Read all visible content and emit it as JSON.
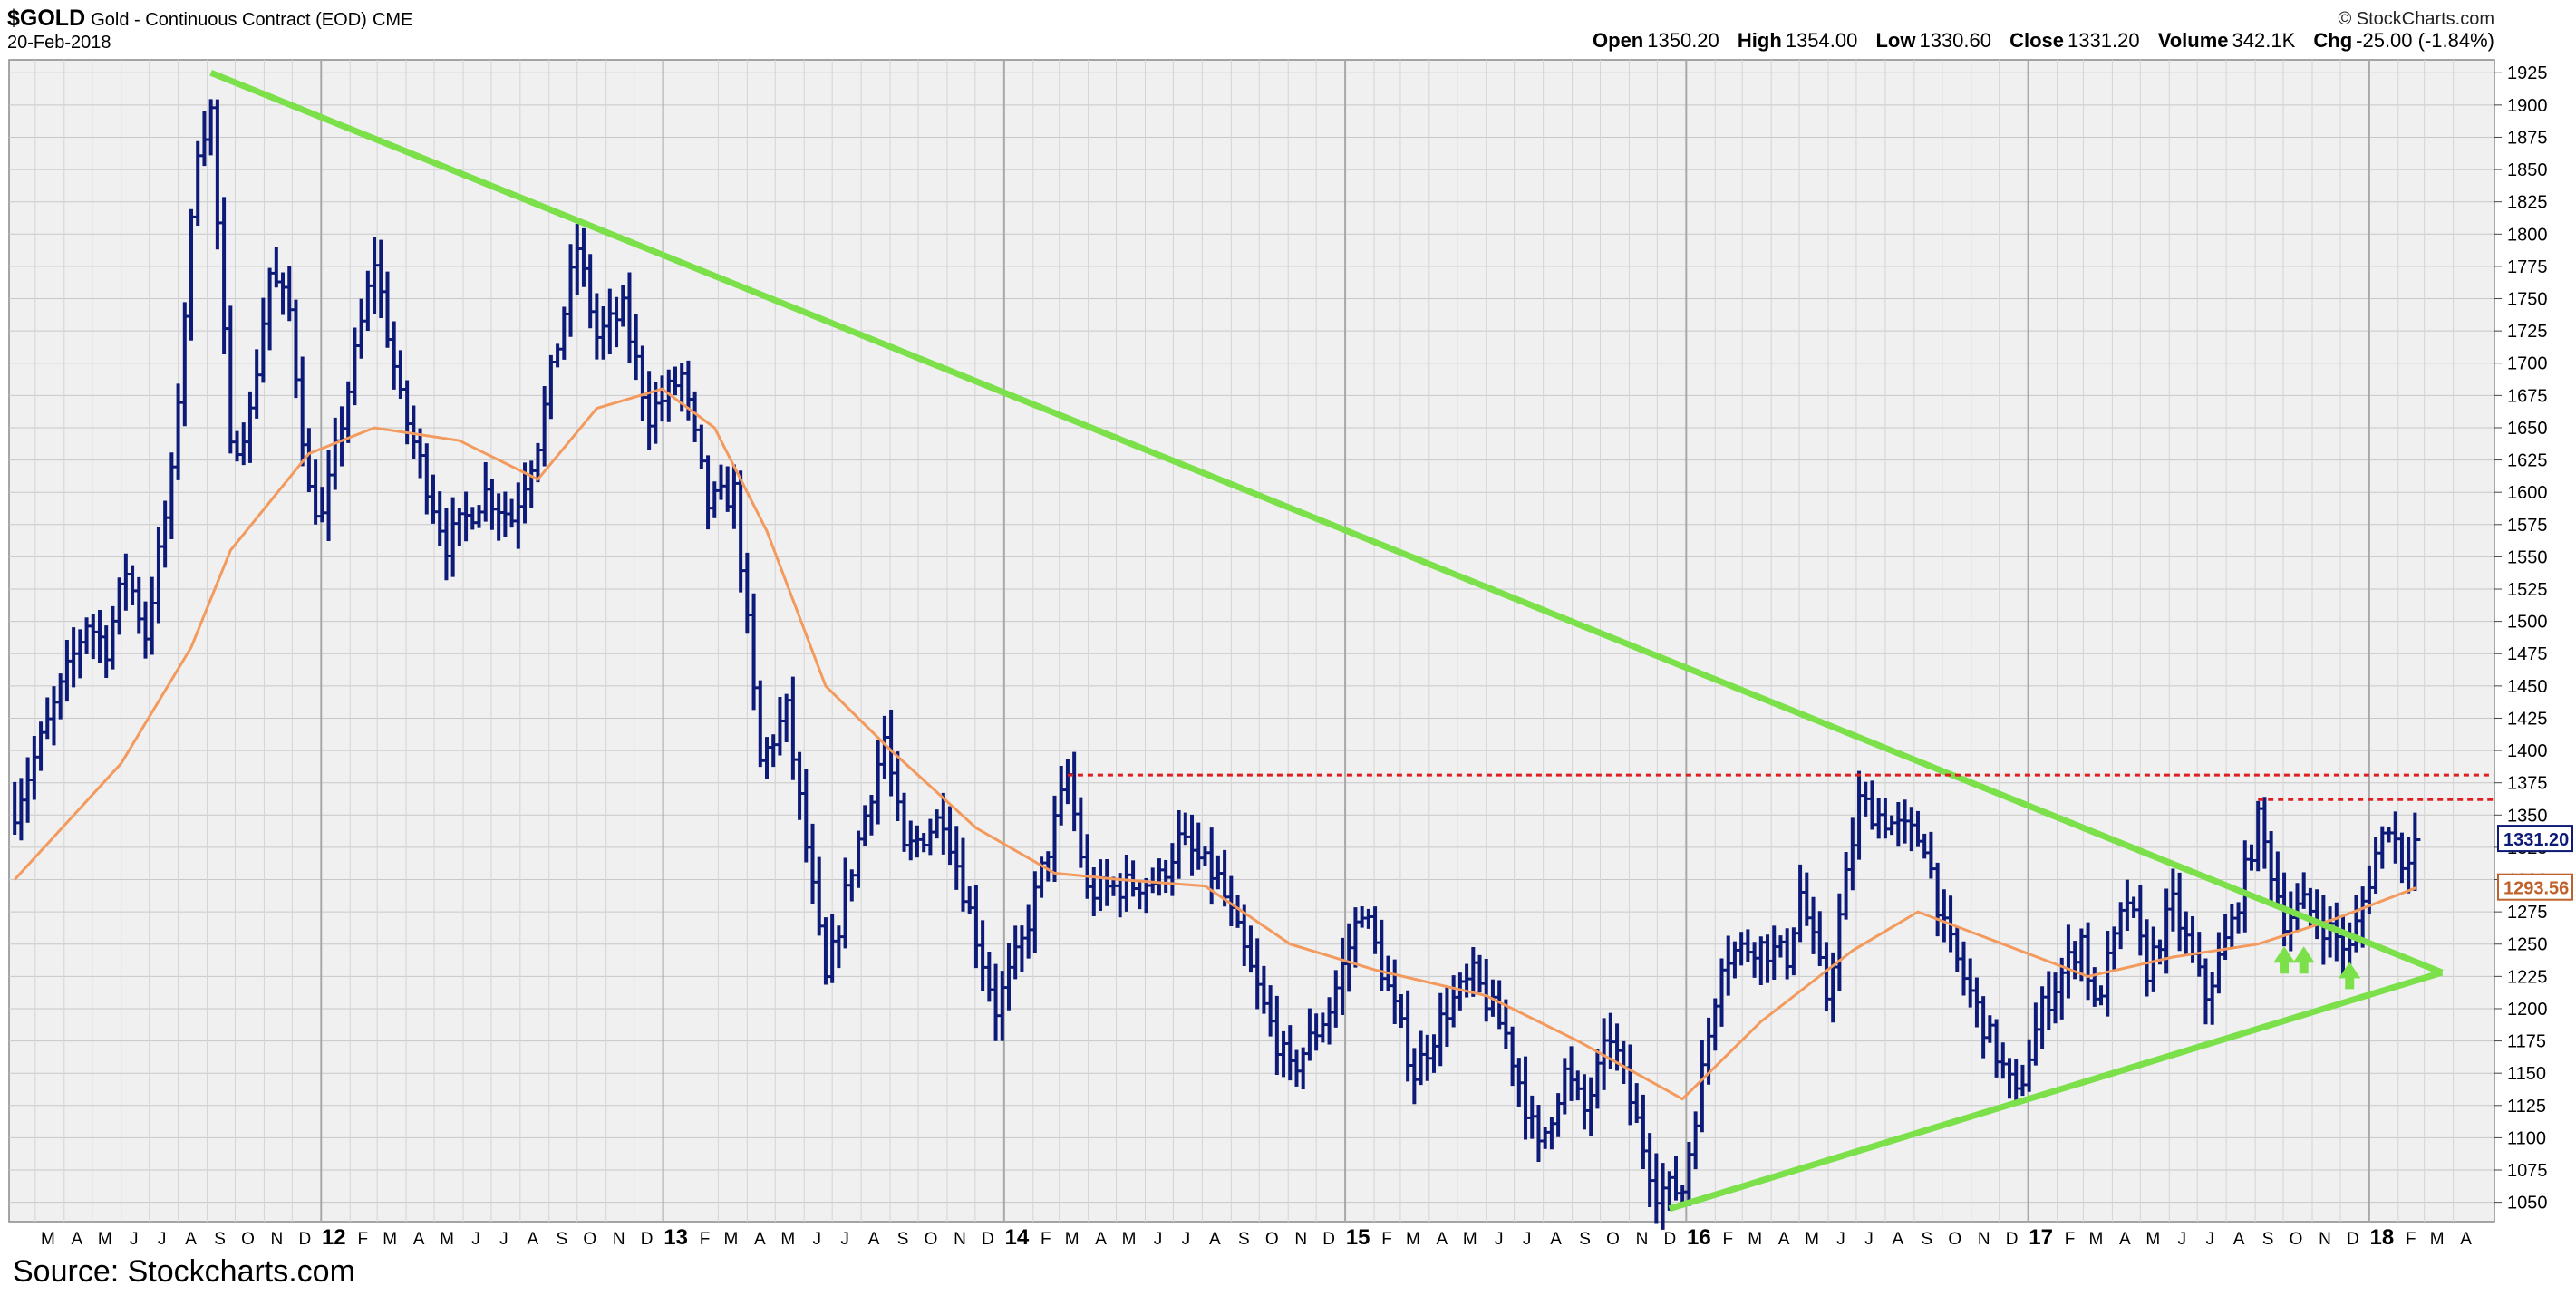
{
  "header": {
    "symbol": "$GOLD",
    "subtitle": "Gold - Continuous Contract (EOD)",
    "exchange": "CME",
    "date": "20-Feb-2018",
    "credit": "© StockCharts.com",
    "open_label": "Open",
    "open": "1350.20",
    "high_label": "High",
    "high": "1354.00",
    "low_label": "Low",
    "low": "1330.60",
    "close_label": "Close",
    "close": "1331.20",
    "volume_label": "Volume",
    "volume": "342.1K",
    "chg_label": "Chg",
    "chg": "-25.00 (-1.84%)"
  },
  "footer": {
    "source": "Source: Stockcharts.com"
  },
  "chart_data": {
    "type": "line",
    "style": "weekly price bars (high-low-close) with moving average",
    "title": "",
    "xlabel": "",
    "ylabel": "",
    "ylim": [
      1035,
      1935
    ],
    "xlim": [
      "2011-02-01",
      "2018-05-15"
    ],
    "y_axis_position": "right",
    "grid": true,
    "yticks": [
      1050,
      1075,
      1100,
      1125,
      1150,
      1175,
      1200,
      1225,
      1250,
      1275,
      1300,
      1325,
      1350,
      1375,
      1400,
      1425,
      1450,
      1475,
      1500,
      1525,
      1550,
      1575,
      1600,
      1625,
      1650,
      1675,
      1700,
      1725,
      1750,
      1775,
      1800,
      1825,
      1850,
      1875,
      1900,
      1925
    ],
    "xticks": [
      {
        "date": "2011-03-01",
        "label": "M"
      },
      {
        "date": "2011-04-01",
        "label": "A"
      },
      {
        "date": "2011-05-01",
        "label": "M"
      },
      {
        "date": "2011-06-01",
        "label": "J"
      },
      {
        "date": "2011-07-01",
        "label": "J"
      },
      {
        "date": "2011-08-01",
        "label": "A"
      },
      {
        "date": "2011-09-01",
        "label": "S"
      },
      {
        "date": "2011-10-01",
        "label": "O"
      },
      {
        "date": "2011-11-01",
        "label": "N"
      },
      {
        "date": "2011-12-01",
        "label": "D"
      },
      {
        "date": "2012-01-01",
        "label": "12"
      },
      {
        "date": "2012-02-01",
        "label": "F"
      },
      {
        "date": "2012-03-01",
        "label": "M"
      },
      {
        "date": "2012-04-01",
        "label": "A"
      },
      {
        "date": "2012-05-01",
        "label": "M"
      },
      {
        "date": "2012-06-01",
        "label": "J"
      },
      {
        "date": "2012-07-01",
        "label": "J"
      },
      {
        "date": "2012-08-01",
        "label": "A"
      },
      {
        "date": "2012-09-01",
        "label": "S"
      },
      {
        "date": "2012-10-01",
        "label": "O"
      },
      {
        "date": "2012-11-01",
        "label": "N"
      },
      {
        "date": "2012-12-01",
        "label": "D"
      },
      {
        "date": "2013-01-01",
        "label": "13"
      },
      {
        "date": "2013-02-01",
        "label": "F"
      },
      {
        "date": "2013-03-01",
        "label": "M"
      },
      {
        "date": "2013-04-01",
        "label": "A"
      },
      {
        "date": "2013-05-01",
        "label": "M"
      },
      {
        "date": "2013-06-01",
        "label": "J"
      },
      {
        "date": "2013-07-01",
        "label": "J"
      },
      {
        "date": "2013-08-01",
        "label": "A"
      },
      {
        "date": "2013-09-01",
        "label": "S"
      },
      {
        "date": "2013-10-01",
        "label": "O"
      },
      {
        "date": "2013-11-01",
        "label": "N"
      },
      {
        "date": "2013-12-01",
        "label": "D"
      },
      {
        "date": "2014-01-01",
        "label": "14"
      },
      {
        "date": "2014-02-01",
        "label": "F"
      },
      {
        "date": "2014-03-01",
        "label": "M"
      },
      {
        "date": "2014-04-01",
        "label": "A"
      },
      {
        "date": "2014-05-01",
        "label": "M"
      },
      {
        "date": "2014-06-01",
        "label": "J"
      },
      {
        "date": "2014-07-01",
        "label": "J"
      },
      {
        "date": "2014-08-01",
        "label": "A"
      },
      {
        "date": "2014-09-01",
        "label": "S"
      },
      {
        "date": "2014-10-01",
        "label": "O"
      },
      {
        "date": "2014-11-01",
        "label": "N"
      },
      {
        "date": "2014-12-01",
        "label": "D"
      },
      {
        "date": "2015-01-01",
        "label": "15"
      },
      {
        "date": "2015-02-01",
        "label": "F"
      },
      {
        "date": "2015-03-01",
        "label": "M"
      },
      {
        "date": "2015-04-01",
        "label": "A"
      },
      {
        "date": "2015-05-01",
        "label": "M"
      },
      {
        "date": "2015-06-01",
        "label": "J"
      },
      {
        "date": "2015-07-01",
        "label": "J"
      },
      {
        "date": "2015-08-01",
        "label": "A"
      },
      {
        "date": "2015-09-01",
        "label": "S"
      },
      {
        "date": "2015-10-01",
        "label": "O"
      },
      {
        "date": "2015-11-01",
        "label": "N"
      },
      {
        "date": "2015-12-01",
        "label": "D"
      },
      {
        "date": "2016-01-01",
        "label": "16"
      },
      {
        "date": "2016-02-01",
        "label": "F"
      },
      {
        "date": "2016-03-01",
        "label": "M"
      },
      {
        "date": "2016-04-01",
        "label": "A"
      },
      {
        "date": "2016-05-01",
        "label": "M"
      },
      {
        "date": "2016-06-01",
        "label": "J"
      },
      {
        "date": "2016-07-01",
        "label": "J"
      },
      {
        "date": "2016-08-01",
        "label": "A"
      },
      {
        "date": "2016-09-01",
        "label": "S"
      },
      {
        "date": "2016-10-01",
        "label": "O"
      },
      {
        "date": "2016-11-01",
        "label": "N"
      },
      {
        "date": "2016-12-01",
        "label": "D"
      },
      {
        "date": "2017-01-01",
        "label": "17"
      },
      {
        "date": "2017-02-01",
        "label": "F"
      },
      {
        "date": "2017-03-01",
        "label": "M"
      },
      {
        "date": "2017-04-01",
        "label": "A"
      },
      {
        "date": "2017-05-01",
        "label": "M"
      },
      {
        "date": "2017-06-01",
        "label": "J"
      },
      {
        "date": "2017-07-01",
        "label": "J"
      },
      {
        "date": "2017-08-01",
        "label": "A"
      },
      {
        "date": "2017-09-01",
        "label": "S"
      },
      {
        "date": "2017-10-01",
        "label": "O"
      },
      {
        "date": "2017-11-01",
        "label": "N"
      },
      {
        "date": "2017-12-01",
        "label": "D"
      },
      {
        "date": "2018-01-01",
        "label": "18"
      },
      {
        "date": "2018-02-01",
        "label": "F"
      },
      {
        "date": "2018-03-01",
        "label": "M"
      },
      {
        "date": "2018-04-01",
        "label": "A"
      }
    ],
    "price_anchors": [
      [
        "2011-02-07",
        1355
      ],
      [
        "2011-03-14",
        1420
      ],
      [
        "2011-04-25",
        1500
      ],
      [
        "2011-05-16",
        1480
      ],
      [
        "2011-06-06",
        1540
      ],
      [
        "2011-06-27",
        1490
      ],
      [
        "2011-07-25",
        1610
      ],
      [
        "2011-08-22",
        1870
      ],
      [
        "2011-09-05",
        1895
      ],
      [
        "2011-09-26",
        1630
      ],
      [
        "2011-10-17",
        1660
      ],
      [
        "2011-11-07",
        1770
      ],
      [
        "2011-11-28",
        1740
      ],
      [
        "2011-12-19",
        1600
      ],
      [
        "2012-01-02",
        1580
      ],
      [
        "2012-02-27",
        1780
      ],
      [
        "2012-03-26",
        1670
      ],
      [
        "2012-05-14",
        1560
      ],
      [
        "2012-06-25",
        1600
      ],
      [
        "2012-07-23",
        1580
      ],
      [
        "2012-08-20",
        1640
      ],
      [
        "2012-10-01",
        1790
      ],
      [
        "2012-10-22",
        1720
      ],
      [
        "2012-11-19",
        1740
      ],
      [
        "2012-12-17",
        1660
      ],
      [
        "2013-01-21",
        1690
      ],
      [
        "2013-02-18",
        1590
      ],
      [
        "2013-03-18",
        1600
      ],
      [
        "2013-04-15",
        1390
      ],
      [
        "2013-05-13",
        1430
      ],
      [
        "2013-06-24",
        1220
      ],
      [
        "2013-07-22",
        1310
      ],
      [
        "2013-08-26",
        1410
      ],
      [
        "2013-09-16",
        1320
      ],
      [
        "2013-10-28",
        1350
      ],
      [
        "2013-12-23",
        1200
      ],
      [
        "2014-01-20",
        1250
      ],
      [
        "2014-03-10",
        1380
      ],
      [
        "2014-03-31",
        1290
      ],
      [
        "2014-06-16",
        1300
      ],
      [
        "2014-07-07",
        1330
      ],
      [
        "2014-08-18",
        1300
      ],
      [
        "2014-10-06",
        1200
      ],
      [
        "2014-11-03",
        1150
      ],
      [
        "2014-12-15",
        1200
      ],
      [
        "2015-01-19",
        1280
      ],
      [
        "2015-03-16",
        1150
      ],
      [
        "2015-04-20",
        1200
      ],
      [
        "2015-05-18",
        1225
      ],
      [
        "2015-06-22",
        1180
      ],
      [
        "2015-07-27",
        1090
      ],
      [
        "2015-08-24",
        1150
      ],
      [
        "2015-09-14",
        1120
      ],
      [
        "2015-10-12",
        1180
      ],
      [
        "2015-11-30",
        1060
      ],
      [
        "2015-12-28",
        1060
      ],
      [
        "2016-02-08",
        1240
      ],
      [
        "2016-03-14",
        1250
      ],
      [
        "2016-04-18",
        1240
      ],
      [
        "2016-05-02",
        1290
      ],
      [
        "2016-05-30",
        1210
      ],
      [
        "2016-07-04",
        1360
      ],
      [
        "2016-08-15",
        1340
      ],
      [
        "2016-09-12",
        1330
      ],
      [
        "2016-10-03",
        1260
      ],
      [
        "2016-11-07",
        1200
      ],
      [
        "2016-12-19",
        1130
      ],
      [
        "2017-01-16",
        1200
      ],
      [
        "2017-02-27",
        1255
      ],
      [
        "2017-03-13",
        1200
      ],
      [
        "2017-04-17",
        1285
      ],
      [
        "2017-05-08",
        1230
      ],
      [
        "2017-06-05",
        1280
      ],
      [
        "2017-07-10",
        1210
      ],
      [
        "2017-08-07",
        1265
      ],
      [
        "2017-09-04",
        1345
      ],
      [
        "2017-10-02",
        1270
      ],
      [
        "2017-10-23",
        1280
      ],
      [
        "2017-12-11",
        1245
      ],
      [
        "2018-01-08",
        1320
      ],
      [
        "2018-01-22",
        1345
      ],
      [
        "2018-02-05",
        1315
      ],
      [
        "2018-02-20",
        1331
      ]
    ],
    "moving_average": [
      [
        "2011-02-07",
        1300
      ],
      [
        "2011-06-01",
        1390
      ],
      [
        "2011-08-15",
        1480
      ],
      [
        "2011-09-26",
        1555
      ],
      [
        "2011-12-19",
        1630
      ],
      [
        "2012-02-27",
        1650
      ],
      [
        "2012-05-28",
        1640
      ],
      [
        "2012-08-20",
        1610
      ],
      [
        "2012-10-22",
        1665
      ],
      [
        "2012-12-31",
        1680
      ],
      [
        "2013-02-25",
        1650
      ],
      [
        "2013-04-22",
        1570
      ],
      [
        "2013-06-24",
        1450
      ],
      [
        "2013-09-02",
        1400
      ],
      [
        "2013-12-02",
        1340
      ],
      [
        "2014-02-24",
        1305
      ],
      [
        "2014-05-05",
        1300
      ],
      [
        "2014-08-04",
        1295
      ],
      [
        "2014-11-03",
        1250
      ],
      [
        "2015-02-02",
        1230
      ],
      [
        "2015-06-01",
        1210
      ],
      [
        "2015-09-07",
        1175
      ],
      [
        "2015-12-28",
        1130
      ],
      [
        "2016-03-21",
        1190
      ],
      [
        "2016-06-27",
        1245
      ],
      [
        "2016-09-05",
        1275
      ],
      [
        "2016-12-05",
        1250
      ],
      [
        "2017-03-06",
        1225
      ],
      [
        "2017-06-05",
        1240
      ],
      [
        "2017-09-04",
        1250
      ],
      [
        "2017-11-27",
        1270
      ],
      [
        "2018-02-20",
        1293.56
      ]
    ],
    "series": [
      {
        "role": "moving-average",
        "color": "#f39a5e",
        "last_value": "1293.56"
      }
    ],
    "last_close_label": "1331.20",
    "trendlines": [
      {
        "name": "upper-falling-trendline",
        "color": "#7be04a",
        "from": [
          "2011-09-05",
          1925
        ],
        "to": [
          "2018-03-20",
          1228
        ]
      },
      {
        "name": "lower-rising-trendline",
        "color": "#7be04a",
        "from": [
          "2015-12-14",
          1045
        ],
        "to": [
          "2018-03-20",
          1228
        ]
      }
    ],
    "resistance_lines": [
      {
        "name": "resistance-1380",
        "color": "#e02020",
        "style": "dotted",
        "from": "2014-03-10",
        "to": "2018-05-15",
        "value": 1381
      },
      {
        "name": "resistance-1362",
        "color": "#e02020",
        "style": "dotted",
        "from": "2017-09-04",
        "to": "2018-05-15",
        "value": 1362
      }
    ],
    "arrows": [
      {
        "name": "support-arrow-1",
        "color": "#7be04a",
        "date": "2017-10-02",
        "value": 1230
      },
      {
        "name": "support-arrow-2",
        "color": "#7be04a",
        "date": "2017-10-23",
        "value": 1230
      },
      {
        "name": "support-arrow-3",
        "color": "#7be04a",
        "date": "2017-12-11",
        "value": 1218
      }
    ],
    "colors": {
      "bars": "#0d1a78",
      "background": "#f0f0f0",
      "grid": "#c8c8c8"
    }
  }
}
